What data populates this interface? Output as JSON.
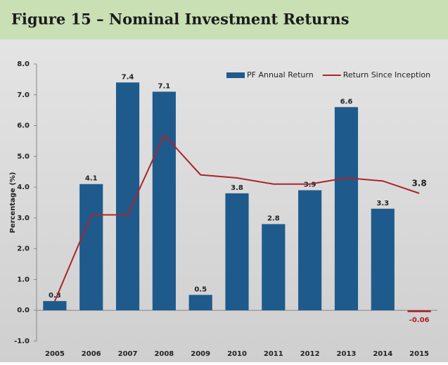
{
  "chart_data": {
    "type": "bar_line",
    "title": "Figure 15 – Nominal Investment Returns",
    "y_label": "Percentage (%)",
    "categories": [
      "2005",
      "2006",
      "2007",
      "2008",
      "2009",
      "2010",
      "2011",
      "2012",
      "2013",
      "2014",
      "2015"
    ],
    "series": [
      {
        "name": "PF Annual Return",
        "type": "bar",
        "color": "#1f5a8c",
        "negative_color": "#b0212a",
        "values": [
          0.3,
          4.1,
          7.4,
          7.1,
          0.5,
          3.8,
          2.8,
          3.9,
          6.6,
          3.3,
          -0.06
        ]
      },
      {
        "name": "Return Since Inception",
        "type": "line",
        "color": "#a8262c",
        "values": [
          0.3,
          3.1,
          3.1,
          5.7,
          4.4,
          4.3,
          4.1,
          4.1,
          4.3,
          4.2,
          3.8
        ],
        "value_labels": [
          null,
          null,
          null,
          null,
          null,
          null,
          null,
          null,
          null,
          null,
          "3.8"
        ]
      }
    ],
    "ylim": [
      -1,
      8
    ],
    "yticks": [
      {
        "value": -1,
        "label": "-1.0"
      },
      {
        "value": 0,
        "label": "0.0"
      },
      {
        "value": 1,
        "label": "1.0"
      },
      {
        "value": 2,
        "label": "2.0"
      },
      {
        "value": 3,
        "label": "3.0"
      },
      {
        "value": 4,
        "label": "4.0"
      },
      {
        "value": 5,
        "label": "5.0"
      },
      {
        "value": 6,
        "label": "6.0"
      },
      {
        "value": 7,
        "label": "7.0"
      },
      {
        "value": 8,
        "label": "8.0"
      }
    ],
    "legend": "top-right"
  }
}
